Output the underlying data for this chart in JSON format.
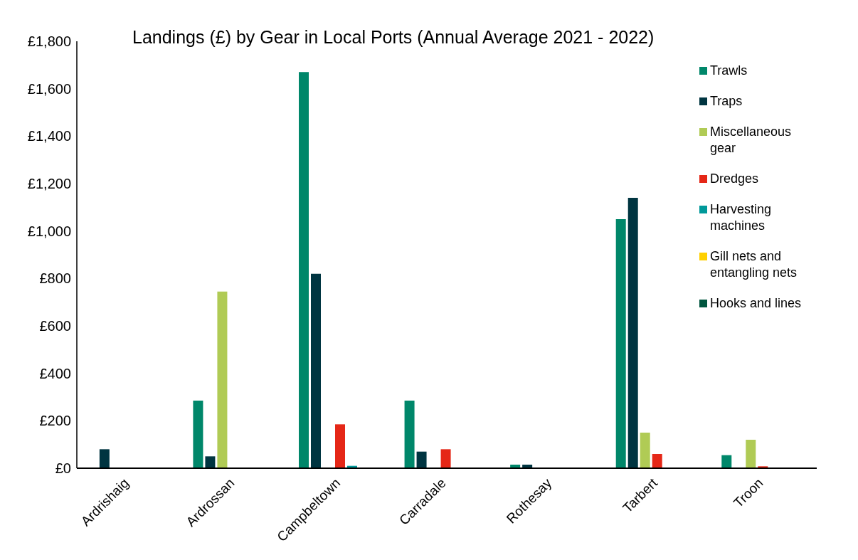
{
  "chart_data": {
    "type": "bar",
    "title": "Landings (£) by Gear in Local Ports (Annual Average 2021 - 2022)",
    "categories": [
      "Ardrishaig",
      "Ardrossan",
      "Campbeltown",
      "Carradale",
      "Rothesay",
      "Tarbert",
      "Troon"
    ],
    "series": [
      {
        "name": "Trawls",
        "color": "#00876a",
        "values": [
          0,
          285,
          1670,
          285,
          15,
          1050,
          55
        ]
      },
      {
        "name": "Traps",
        "color": "#003541",
        "values": [
          80,
          50,
          820,
          70,
          15,
          1140,
          0
        ]
      },
      {
        "name": "Miscellaneous gear",
        "color": "#b0cb55",
        "values": [
          0,
          745,
          0,
          0,
          0,
          150,
          120
        ]
      },
      {
        "name": "Dredges",
        "color": "#e52717",
        "values": [
          0,
          0,
          185,
          80,
          null,
          60,
          8
        ]
      },
      {
        "name": "Harvesting machines",
        "color": "#00999a",
        "values": [
          0,
          0,
          10,
          0,
          0,
          0,
          0
        ]
      },
      {
        "name": "Gill nets and entangling nets",
        "color": "#ffd000",
        "values": [
          0,
          0,
          0,
          0,
          0,
          0,
          0
        ]
      },
      {
        "name": "Hooks and lines",
        "color": "#00563f",
        "values": [
          0,
          0,
          0,
          0,
          0,
          0,
          0
        ]
      }
    ],
    "ylim": [
      0,
      1800
    ],
    "yticks": [
      {
        "value": 0,
        "label": "£0"
      },
      {
        "value": 200,
        "label": "£200"
      },
      {
        "value": 400,
        "label": "£400"
      },
      {
        "value": 600,
        "label": "£600"
      },
      {
        "value": 800,
        "label": "£800"
      },
      {
        "value": 1000,
        "label": "£1,000"
      },
      {
        "value": 1200,
        "label": "£1,200"
      },
      {
        "value": 1400,
        "label": "£1,400"
      },
      {
        "value": 1600,
        "label": "£1,600"
      },
      {
        "value": 1800,
        "label": "£1,800"
      }
    ],
    "grid": false,
    "legend": "top right"
  }
}
